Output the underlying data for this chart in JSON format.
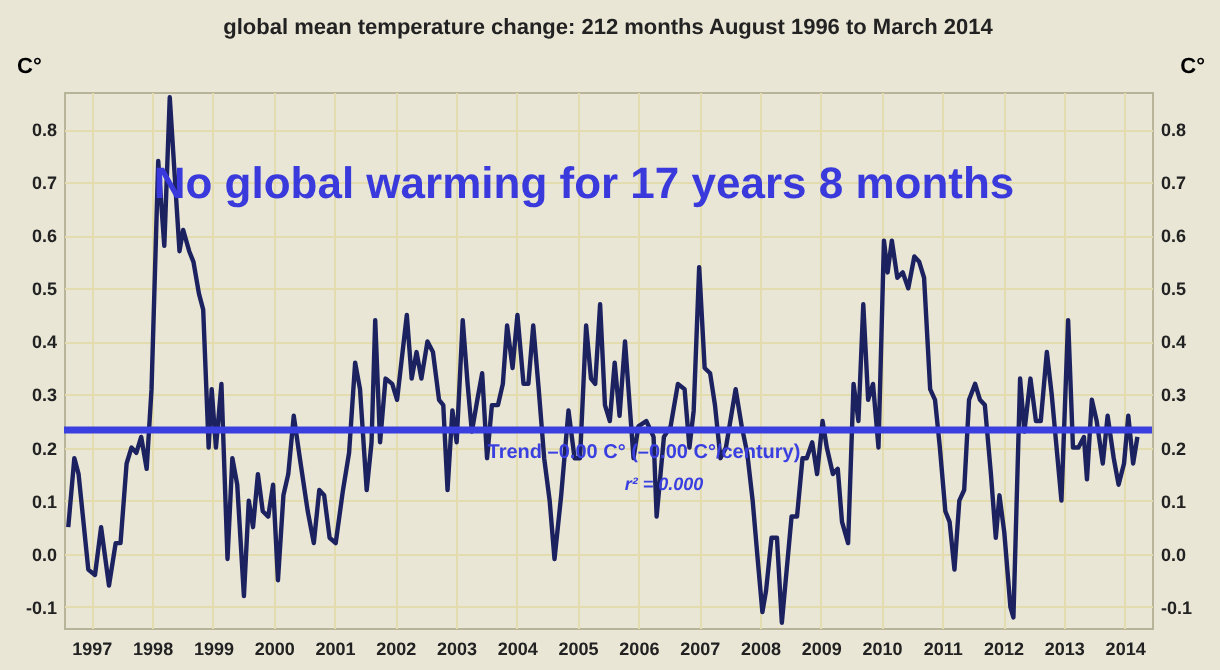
{
  "chart_data": {
    "type": "line",
    "title": "global mean temperature change: 212 months August 1996 to March 2014",
    "ylabel": "C°",
    "y2label": "C°",
    "annotations": [
      "No global warming for 17 years 8 months",
      "r² = 0.000"
    ],
    "xlim": [
      1996.55,
      2014.45
    ],
    "xticks": [
      1997,
      1998,
      1999,
      2000,
      2001,
      2002,
      2003,
      2004,
      2005,
      2006,
      2007,
      2008,
      2009,
      2010,
      2011,
      2012,
      2013,
      2014
    ],
    "ylim": [
      -0.14,
      0.87
    ],
    "yticks": [
      -0.1,
      {
        "value": 0,
        "label": "0.0"
      },
      0.1,
      0.2,
      0.3,
      0.4,
      0.5,
      0.6,
      0.7,
      0.8
    ],
    "y2lim": [
      -0.14,
      0.87
    ],
    "y2ticks": [
      -0.1,
      {
        "value": 0,
        "label": "0.0"
      },
      0.1,
      0.2,
      0.3,
      0.4,
      0.5,
      0.6,
      0.7,
      0.8
    ],
    "grid": true,
    "marker": "none",
    "line_style": "solid",
    "ref_lines": [
      {
        "axis": "y",
        "value": 0.233,
        "label": "Trend –0.00 C° (–0.00 C°/century)",
        "color": "#3a3fe0"
      }
    ],
    "series": [
      {
        "color": "#1c2160",
        "x": [
          1996.62,
          1996.72,
          1996.79,
          1996.95,
          1997.06,
          1997.16,
          1997.29,
          1997.4,
          1997.48,
          1997.58,
          1997.66,
          1997.74,
          1997.82,
          1997.91,
          1997.99,
          1998.1,
          1998.2,
          1998.29,
          1998.45,
          1998.51,
          1998.61,
          1998.68,
          1998.77,
          1998.84,
          1998.93,
          1998.98,
          1999.05,
          1999.14,
          1999.24,
          1999.32,
          1999.4,
          1999.51,
          1999.59,
          1999.66,
          1999.74,
          1999.82,
          1999.91,
          1999.99,
          2000.07,
          2000.16,
          2000.24,
          2000.33,
          2000.43,
          2000.56,
          2000.66,
          2000.75,
          2000.83,
          2000.92,
          2001.02,
          2001.14,
          2001.24,
          2001.34,
          2001.42,
          2001.53,
          2001.61,
          2001.67,
          2001.75,
          2001.84,
          2001.95,
          2002.03,
          2002.19,
          2002.27,
          2002.35,
          2002.43,
          2002.53,
          2002.62,
          2002.72,
          2002.79,
          2002.86,
          2002.94,
          2003.01,
          2003.11,
          2003.19,
          2003.26,
          2003.35,
          2003.43,
          2003.51,
          2003.59,
          2003.69,
          2003.77,
          2003.84,
          2003.93,
          2004.01,
          2004.11,
          2004.19,
          2004.27,
          2004.36,
          2004.45,
          2004.54,
          2004.62,
          2004.73,
          2004.85,
          2004.95,
          2005.04,
          2005.14,
          2005.22,
          2005.29,
          2005.37,
          2005.45,
          2005.53,
          2005.61,
          2005.69,
          2005.78,
          2005.92,
          2006.0,
          2006.13,
          2006.25,
          2006.3,
          2006.42,
          2006.53,
          2006.65,
          2006.76,
          2006.84,
          2006.91,
          2007.0,
          2007.09,
          2007.18,
          2007.26,
          2007.35,
          2007.44,
          2007.6,
          2007.7,
          2007.79,
          2007.88,
          2007.97,
          2008.04,
          2008.1,
          2008.19,
          2008.28,
          2008.36,
          2008.44,
          2008.52,
          2008.61,
          2008.7,
          2008.77,
          2008.86,
          2008.94,
          2009.03,
          2009.1,
          2009.2,
          2009.28,
          2009.35,
          2009.45,
          2009.54,
          2009.62,
          2009.7,
          2009.78,
          2009.86,
          2009.95,
          2010.04,
          2010.1,
          2010.17,
          2010.26,
          2010.35,
          2010.44,
          2010.54,
          2010.62,
          2010.7,
          2010.8,
          2010.88,
          2010.96,
          2011.05,
          2011.12,
          2011.2,
          2011.28,
          2011.36,
          2011.44,
          2011.54,
          2011.62,
          2011.7,
          2011.8,
          2011.88,
          2011.94,
          2012.02,
          2012.12,
          2012.17,
          2012.28,
          2012.35,
          2012.45,
          2012.54,
          2012.62,
          2012.72,
          2012.8,
          2012.96,
          2013.07,
          2013.15,
          2013.24,
          2013.33,
          2013.38,
          2013.46,
          2013.54,
          2013.64,
          2013.72,
          2013.82,
          2013.9,
          2013.99,
          2014.06,
          2014.14,
          2014.21
        ],
        "values": [
          0.05,
          0.18,
          0.15,
          -0.03,
          -0.04,
          0.05,
          -0.06,
          0.02,
          0.02,
          0.17,
          0.2,
          0.19,
          0.22,
          0.16,
          0.31,
          0.74,
          0.58,
          0.86,
          0.57,
          0.61,
          0.57,
          0.55,
          0.49,
          0.46,
          0.2,
          0.31,
          0.2,
          0.32,
          -0.01,
          0.18,
          0.13,
          -0.08,
          0.1,
          0.05,
          0.15,
          0.08,
          0.07,
          0.13,
          -0.05,
          0.11,
          0.15,
          0.26,
          0.18,
          0.08,
          0.02,
          0.12,
          0.11,
          0.03,
          0.02,
          0.12,
          0.19,
          0.36,
          0.31,
          0.12,
          0.21,
          0.44,
          0.21,
          0.33,
          0.32,
          0.29,
          0.45,
          0.33,
          0.38,
          0.33,
          0.4,
          0.38,
          0.29,
          0.28,
          0.12,
          0.27,
          0.21,
          0.44,
          0.32,
          0.23,
          0.29,
          0.34,
          0.18,
          0.28,
          0.28,
          0.32,
          0.43,
          0.35,
          0.45,
          0.32,
          0.32,
          0.43,
          0.31,
          0.18,
          0.1,
          -0.01,
          0.11,
          0.27,
          0.18,
          0.18,
          0.43,
          0.33,
          0.32,
          0.47,
          0.28,
          0.25,
          0.36,
          0.26,
          0.4,
          0.18,
          0.24,
          0.25,
          0.22,
          0.07,
          0.22,
          0.24,
          0.32,
          0.31,
          0.2,
          0.27,
          0.54,
          0.35,
          0.34,
          0.28,
          0.18,
          0.2,
          0.31,
          0.24,
          0.19,
          0.1,
          -0.02,
          -0.11,
          -0.07,
          0.03,
          0.03,
          -0.13,
          -0.03,
          0.07,
          0.07,
          0.18,
          0.18,
          0.21,
          0.15,
          0.25,
          0.2,
          0.15,
          0.16,
          0.06,
          0.02,
          0.32,
          0.25,
          0.47,
          0.29,
          0.32,
          0.2,
          0.59,
          0.53,
          0.59,
          0.52,
          0.53,
          0.5,
          0.56,
          0.55,
          0.52,
          0.31,
          0.29,
          0.2,
          0.08,
          0.06,
          -0.03,
          0.1,
          0.12,
          0.29,
          0.32,
          0.29,
          0.28,
          0.15,
          0.03,
          0.11,
          0.04,
          -0.1,
          -0.12,
          0.33,
          0.23,
          0.33,
          0.25,
          0.25,
          0.38,
          0.3,
          0.1,
          0.44,
          0.2,
          0.2,
          0.22,
          0.14,
          0.29,
          0.25,
          0.17,
          0.26,
          0.18,
          0.13,
          0.17,
          0.26,
          0.17,
          0.22
        ]
      }
    ]
  }
}
